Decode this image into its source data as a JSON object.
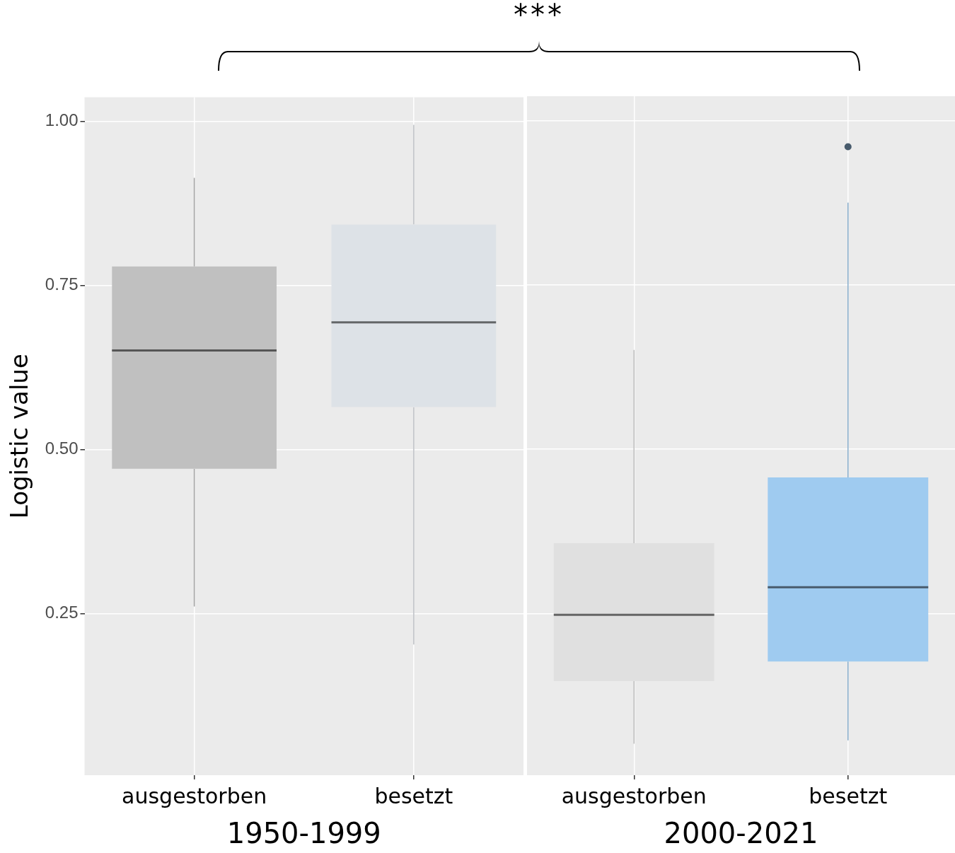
{
  "chart_data": [
    {
      "type": "box",
      "xlabel": "1950-1999",
      "ylabel": "Logistic value",
      "annotations": [
        "***"
      ],
      "categories": [
        "ausgestorben",
        "besetzt"
      ],
      "boxes": [
        {
          "low": 0.261,
          "q1": 0.471,
          "median": 0.651,
          "q3": 0.779,
          "high": 0.914
        },
        {
          "low": 0.203,
          "q1": 0.565,
          "median": 0.694,
          "q3": 0.843,
          "high": 0.995
        }
      ],
      "colors": [
        "#c0c0c0",
        "#dde2e7"
      ],
      "ylim": [
        0.004,
        1.037
      ],
      "yticks": [
        {
          "value": 0.25,
          "label": "0.25"
        },
        {
          "value": 0.5,
          "label": "0.50"
        },
        {
          "value": 0.75,
          "label": "0.75"
        },
        {
          "value": 1,
          "label": "1.00"
        }
      ],
      "grid": true
    },
    {
      "type": "box",
      "xlabel": "2000-2021",
      "categories": [
        "ausgestorben",
        "besetzt"
      ],
      "boxes": [
        {
          "low": 0.052,
          "q1": 0.147,
          "median": 0.248,
          "q3": 0.357,
          "high": 0.651
        },
        {
          "low": 0.057,
          "q1": 0.177,
          "median": 0.29,
          "q3": 0.457,
          "high": 0.875,
          "outliers": [
            0.96
          ]
        }
      ],
      "colors": [
        "#e0e0e0",
        "#9fcbf0"
      ],
      "ylim": [
        0.004,
        1.037
      ],
      "yticks": [
        0.25,
        0.5,
        0.75,
        1
      ],
      "grid": true,
      "tick_labels": "x"
    }
  ]
}
